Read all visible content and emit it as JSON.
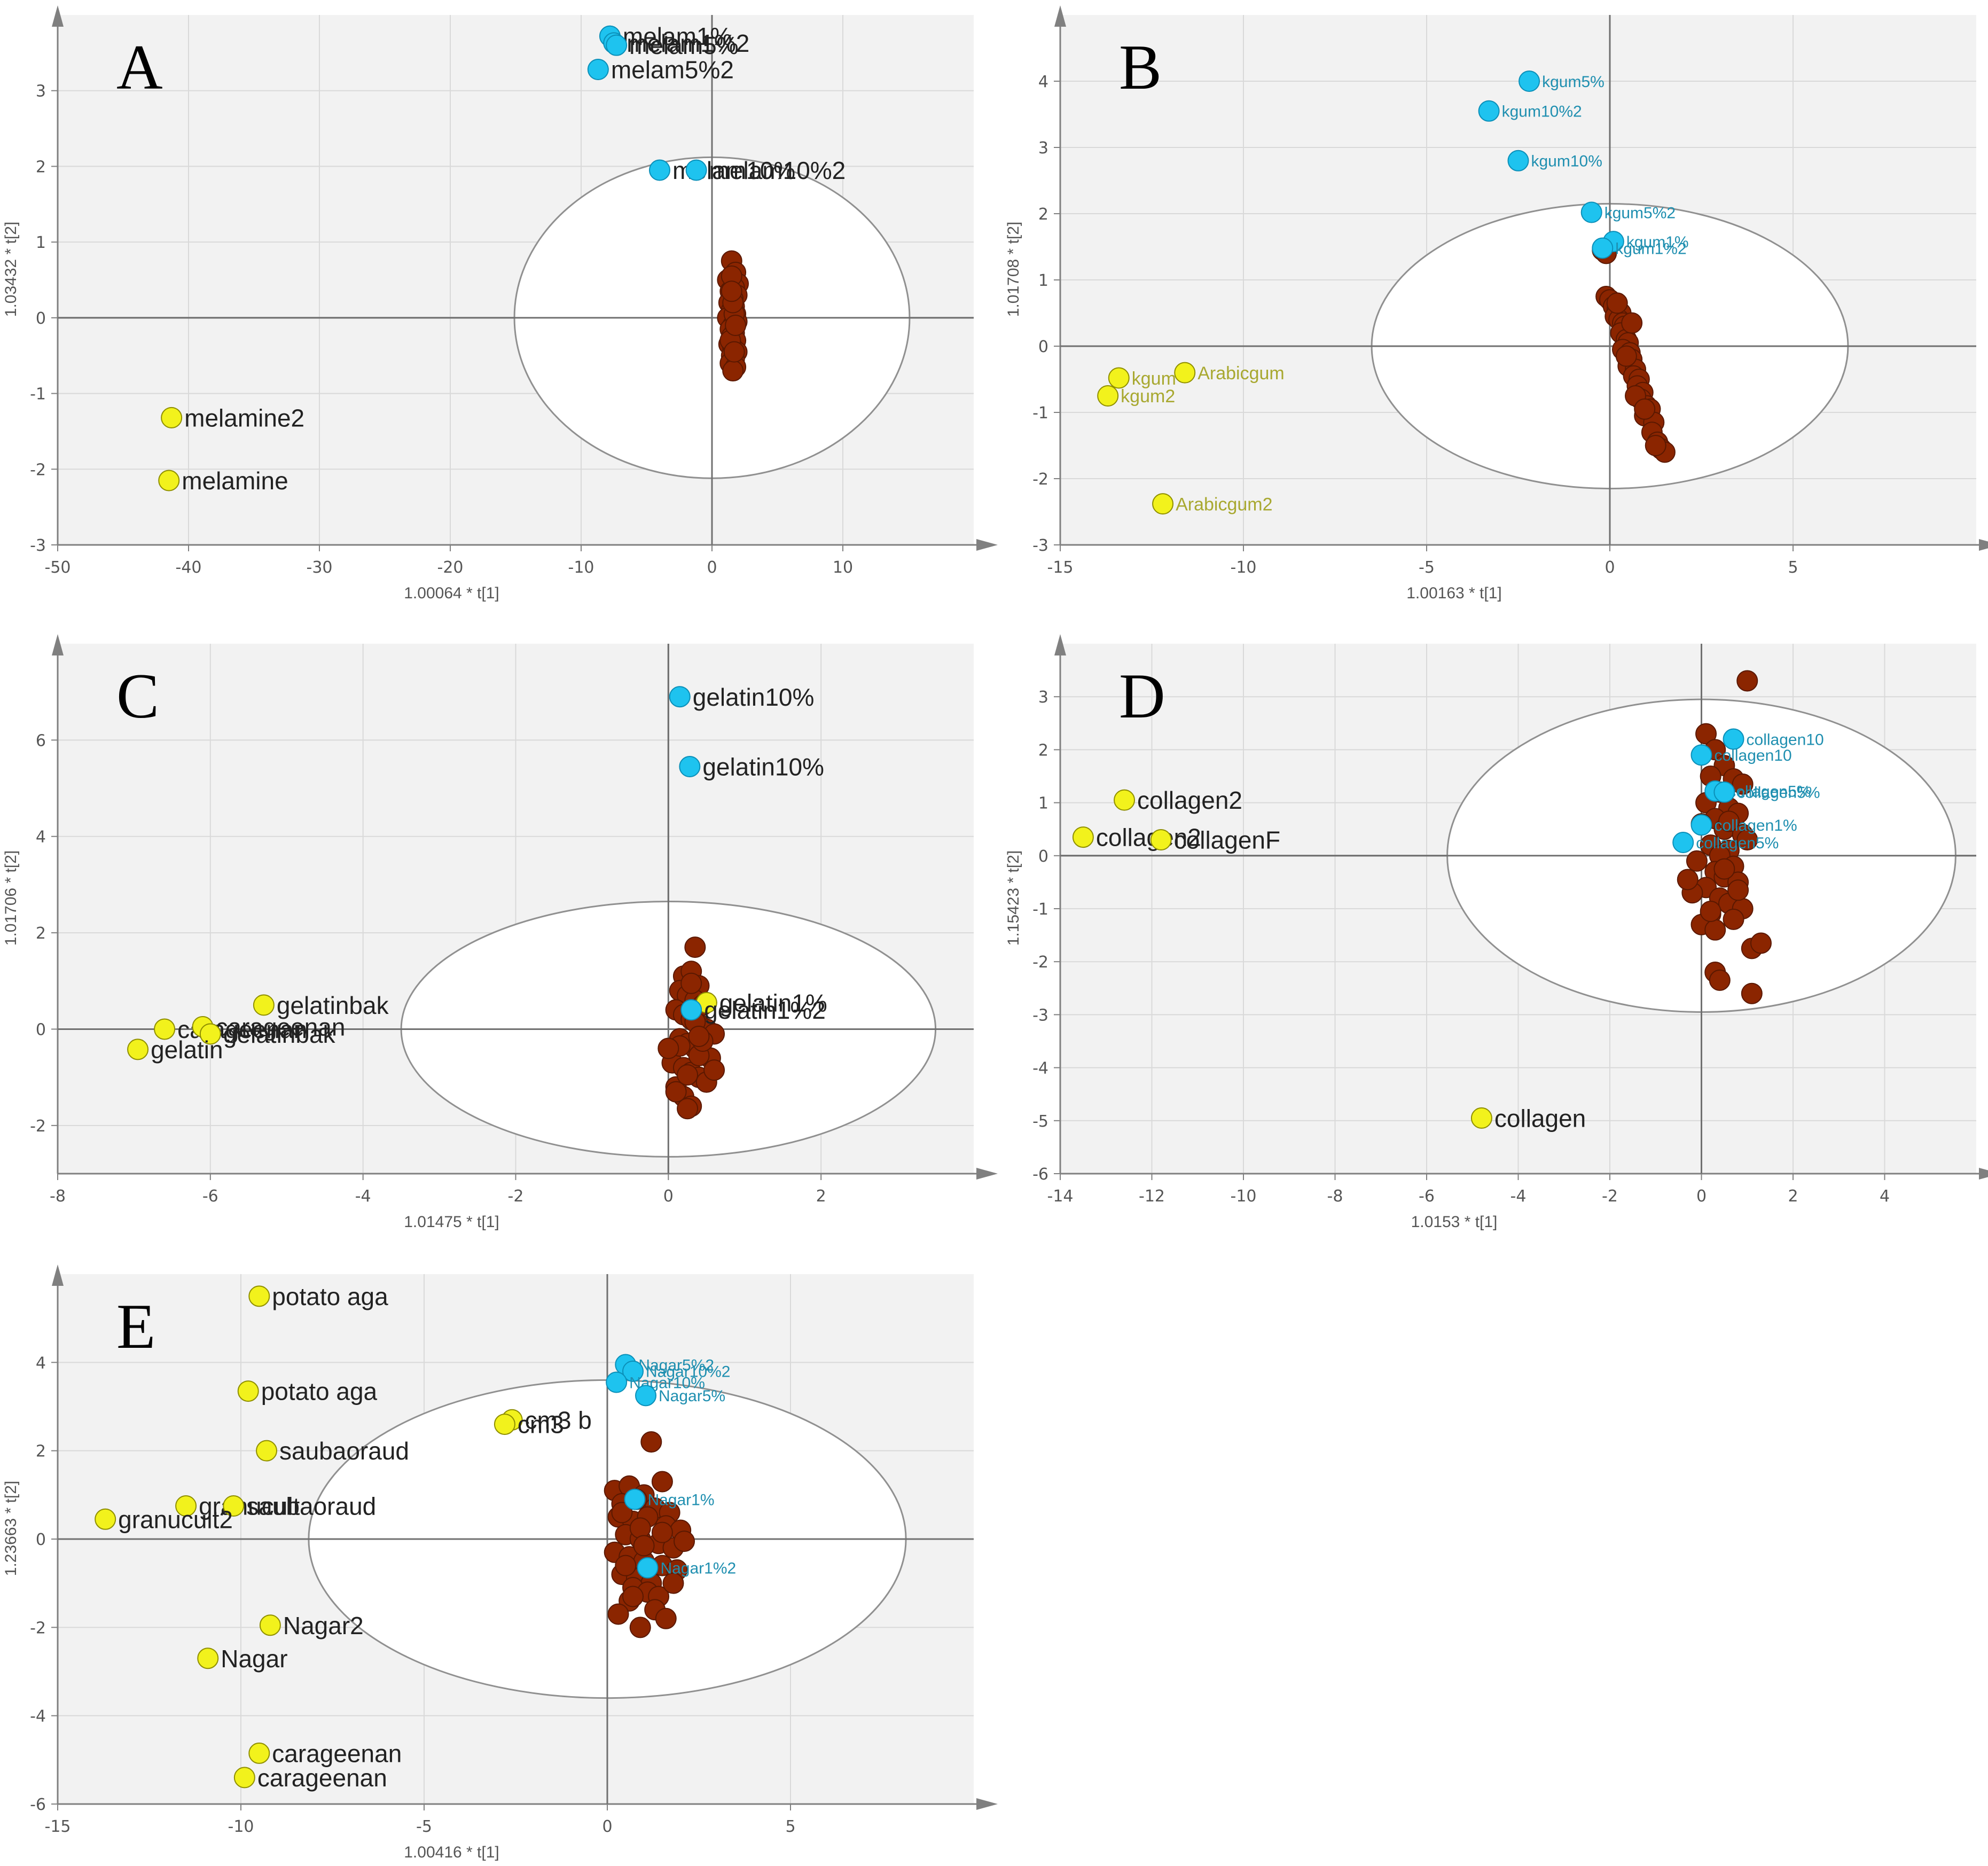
{
  "colors": {
    "plot_bg": "#f2f2f2",
    "grid": "#d9d9d9",
    "axis": "#808080",
    "ellipse": "#909090",
    "samples": "#8b2500",
    "samples_edge": "#5a1800",
    "blue": "#1ec3ef",
    "blue_edge": "#0b8fb8",
    "blue_label": "#1f8fb0",
    "yellow": "#f2f21c",
    "yellow_edge": "#8f8f00",
    "yellow_label_dim": "#a8a830",
    "tick_text": "#555555",
    "label_text": "#222222"
  },
  "chart_data": [
    {
      "panel": "A",
      "type": "scatter",
      "xlabel": "1.00064 * t[1]",
      "ylabel": "1.03432 * t[2]",
      "xlim": [
        -50,
        20
      ],
      "ylim": [
        -3,
        4
      ],
      "xticks": [
        -50,
        -40,
        -30,
        -20,
        -10,
        0,
        10
      ],
      "yticks": [
        -3,
        -2,
        -1,
        0,
        1,
        2,
        3
      ],
      "ellipse": {
        "cx": 0,
        "cy": 0,
        "rx": 15.1,
        "ry": 2.12
      },
      "cluster": {
        "x": [
          1.5,
          1.8,
          1.2,
          2.0,
          1.7,
          1.4,
          1.9,
          1.6,
          1.3,
          1.7,
          1.5,
          1.8,
          1.2,
          1.9,
          1.6,
          1.4,
          1.7,
          1.5,
          1.8,
          1.3,
          1.6,
          1.9,
          1.5,
          1.7,
          1.4,
          1.8,
          1.6,
          1.5,
          1.7,
          1.4,
          1.6,
          1.8,
          1.5,
          1.7
        ],
        "y": [
          0.75,
          0.6,
          0.5,
          0.45,
          0.4,
          0.35,
          0.3,
          0.25,
          0.2,
          0.15,
          0.1,
          0.05,
          0.0,
          -0.05,
          -0.1,
          -0.15,
          -0.2,
          -0.25,
          -0.3,
          -0.35,
          -0.4,
          -0.45,
          -0.5,
          -0.55,
          -0.6,
          -0.65,
          -0.7,
          0.55,
          0.05,
          -0.3,
          0.2,
          -0.1,
          0.35,
          -0.45
        ]
      },
      "labeled_points": [
        {
          "label": "melam1%",
          "x": -7.8,
          "y": 3.72,
          "group": "blue"
        },
        {
          "label": "melam1%2",
          "x": -7.5,
          "y": 3.63,
          "group": "blue"
        },
        {
          "label": "melam5%",
          "x": -7.3,
          "y": 3.6,
          "group": "blue"
        },
        {
          "label": "melam5%2",
          "x": -8.7,
          "y": 3.28,
          "group": "blue"
        },
        {
          "label": "melam10%",
          "x": -4.0,
          "y": 1.95,
          "group": "blue"
        },
        {
          "label": "melam10%2",
          "x": -1.2,
          "y": 1.95,
          "group": "blue"
        },
        {
          "label": "melamine2",
          "x": -41.3,
          "y": -1.32,
          "group": "yellow"
        },
        {
          "label": "melamine",
          "x": -41.5,
          "y": -2.15,
          "group": "yellow"
        }
      ]
    },
    {
      "panel": "B",
      "type": "scatter",
      "xlabel": "1.00163 * t[1]",
      "ylabel": "1.01708 * t[2]",
      "xlim": [
        -15,
        10
      ],
      "ylim": [
        -3,
        5
      ],
      "xticks": [
        -15,
        -10,
        -5,
        0,
        5
      ],
      "yticks": [
        -3,
        -2,
        -1,
        0,
        1,
        2,
        3,
        4
      ],
      "ellipse": {
        "cx": 0,
        "cy": 0,
        "rx": 6.5,
        "ry": 2.15
      },
      "cluster": {
        "x": [
          -0.1,
          0.0,
          0.1,
          0.2,
          0.3,
          0.15,
          0.25,
          0.35,
          0.4,
          0.3,
          0.45,
          0.5,
          0.35,
          0.55,
          0.6,
          0.5,
          0.7,
          0.65,
          0.8,
          0.75,
          0.9,
          0.85,
          1.0,
          1.1,
          0.95,
          1.2,
          1.15,
          1.3,
          1.4,
          1.5,
          1.25,
          0.6,
          0.45,
          0.2,
          0.7,
          0.95,
          -0.2,
          -0.1
        ],
        "y": [
          0.75,
          0.7,
          0.6,
          0.55,
          0.5,
          0.45,
          0.4,
          0.35,
          0.3,
          0.2,
          0.1,
          0.05,
          -0.05,
          -0.1,
          -0.2,
          -0.3,
          -0.35,
          -0.45,
          -0.5,
          -0.6,
          -0.7,
          -0.8,
          -0.9,
          -0.95,
          -1.05,
          -1.15,
          -1.3,
          -1.45,
          -1.55,
          -1.6,
          -1.5,
          0.35,
          -0.15,
          0.65,
          -0.75,
          -0.95,
          1.45,
          1.4
        ]
      },
      "labeled_points": [
        {
          "label": "kgum5%",
          "x": -2.2,
          "y": 4.0,
          "group": "blue"
        },
        {
          "label": "kgum10%2",
          "x": -3.3,
          "y": 3.55,
          "group": "blue"
        },
        {
          "label": "kgum10%",
          "x": -2.5,
          "y": 2.8,
          "group": "blue"
        },
        {
          "label": "kgum5%2",
          "x": -0.5,
          "y": 2.02,
          "group": "blue"
        },
        {
          "label": "kgum1%",
          "x": 0.1,
          "y": 1.58,
          "group": "blue"
        },
        {
          "label": "kgum1%2",
          "x": -0.2,
          "y": 1.48,
          "group": "blue"
        },
        {
          "label": "kgum",
          "x": -13.4,
          "y": -0.48,
          "group": "yellow"
        },
        {
          "label": "Arabicgum",
          "x": -11.6,
          "y": -0.4,
          "group": "yellow"
        },
        {
          "label": "kgum2",
          "x": -13.7,
          "y": -0.75,
          "group": "yellow"
        },
        {
          "label": "Arabicgum2",
          "x": -12.2,
          "y": -2.38,
          "group": "yellow"
        }
      ]
    },
    {
      "panel": "C",
      "type": "scatter",
      "xlabel": "1.01475 * t[1]",
      "ylabel": "1.01706 * t[2]",
      "xlim": [
        -8,
        4
      ],
      "ylim": [
        -3,
        8
      ],
      "xticks": [
        -8,
        -6,
        -4,
        -2,
        0,
        2
      ],
      "yticks": [
        -2,
        0,
        2,
        4,
        6
      ],
      "ellipse": {
        "cx": 0,
        "cy": 0,
        "rx": 3.5,
        "ry": 2.65
      },
      "cluster": {
        "x": [
          0.35,
          0.2,
          0.3,
          0.4,
          0.15,
          0.25,
          0.35,
          0.45,
          0.1,
          0.2,
          0.3,
          0.4,
          0.5,
          0.6,
          0.15,
          0.25,
          0.35,
          0.45,
          0.55,
          0.05,
          0.2,
          0.3,
          0.4,
          0.5,
          0.1,
          0.2,
          0.3,
          0.4,
          0.6,
          0.25,
          0.35,
          0.45,
          0.15,
          0.3,
          0.5,
          0.0,
          0.1,
          0.25,
          0.4
        ],
        "y": [
          1.7,
          1.1,
          1.2,
          0.9,
          0.8,
          0.7,
          0.6,
          0.5,
          0.4,
          0.3,
          0.2,
          0.1,
          0.0,
          -0.1,
          -0.2,
          -0.3,
          -0.4,
          -0.5,
          -0.6,
          -0.7,
          -0.8,
          -0.9,
          -1.0,
          -1.1,
          -1.2,
          -1.4,
          -1.6,
          -0.55,
          -0.85,
          -1.65,
          0.15,
          -0.25,
          -0.35,
          0.95,
          0.55,
          -0.4,
          -1.3,
          -0.95,
          -0.15
        ]
      },
      "labeled_points": [
        {
          "label": "gelatin10%",
          "x": 0.15,
          "y": 6.9,
          "group": "blue"
        },
        {
          "label": "gelatin10%",
          "x": 0.28,
          "y": 5.45,
          "group": "blue"
        },
        {
          "label": "gelatin1%",
          "x": 0.5,
          "y": 0.55,
          "group": "yellow"
        },
        {
          "label": "gelatin1%2",
          "x": 0.3,
          "y": 0.4,
          "group": "blue"
        },
        {
          "label": "gelatinbak",
          "x": -5.3,
          "y": 0.5,
          "group": "yellow"
        },
        {
          "label": "carageenan",
          "x": -6.6,
          "y": 0.0,
          "group": "yellow"
        },
        {
          "label": "carageenan",
          "x": -6.1,
          "y": 0.05,
          "group": "yellow"
        },
        {
          "label": "gelatinbak",
          "x": -6.0,
          "y": -0.1,
          "group": "yellow"
        },
        {
          "label": "gelatin",
          "x": -6.95,
          "y": -0.42,
          "group": "yellow"
        }
      ]
    },
    {
      "panel": "D",
      "type": "scatter",
      "xlabel": "1.0153 * t[1]",
      "ylabel": "1.15423 * t[2]",
      "xlim": [
        -14,
        6
      ],
      "ylim": [
        -6,
        4
      ],
      "xticks": [
        -14,
        -12,
        -10,
        -8,
        -6,
        -4,
        -2,
        0,
        2,
        4
      ],
      "yticks": [
        -6,
        -5,
        -4,
        -3,
        -2,
        -1,
        0,
        1,
        2,
        3
      ],
      "ellipse": {
        "cx": 0,
        "cy": 0,
        "rx": 5.55,
        "ry": 2.95
      },
      "cluster": {
        "x": [
          1.0,
          0.1,
          0.3,
          0.5,
          0.2,
          0.7,
          0.9,
          0.4,
          0.1,
          0.6,
          0.8,
          0.3,
          0.0,
          0.5,
          0.9,
          1.0,
          0.2,
          0.6,
          0.4,
          -0.1,
          0.7,
          0.3,
          0.5,
          0.8,
          0.1,
          -0.2,
          0.4,
          0.6,
          0.9,
          0.2,
          0.7,
          0.0,
          0.3,
          1.1,
          1.3,
          0.3,
          0.4,
          1.1,
          0.8,
          0.5,
          -0.3,
          0.6,
          0.2
        ],
        "y": [
          3.3,
          2.3,
          2.0,
          1.7,
          1.5,
          1.45,
          1.35,
          1.2,
          1.0,
          0.9,
          0.8,
          0.7,
          0.6,
          0.5,
          0.4,
          0.3,
          0.2,
          0.1,
          0.0,
          -0.1,
          -0.2,
          -0.3,
          -0.4,
          -0.5,
          -0.6,
          -0.7,
          -0.8,
          -0.9,
          -1.0,
          -1.1,
          -1.2,
          -1.3,
          -1.4,
          -1.75,
          -1.65,
          -2.2,
          -2.35,
          -2.6,
          -0.65,
          -0.25,
          -0.45,
          0.65,
          -1.05
        ]
      },
      "labeled_points": [
        {
          "label": "collagen10",
          "x": 0.7,
          "y": 2.2,
          "group": "blue"
        },
        {
          "label": "collagen10",
          "x": 0.0,
          "y": 1.9,
          "group": "blue"
        },
        {
          "label": "collagen5%",
          "x": 0.3,
          "y": 1.22,
          "group": "blue"
        },
        {
          "label": "collagen5%",
          "x": 0.5,
          "y": 1.2,
          "group": "blue"
        },
        {
          "label": "collagen1%",
          "x": 0.0,
          "y": 0.58,
          "group": "blue"
        },
        {
          "label": "collagen5%",
          "x": -0.4,
          "y": 0.25,
          "group": "blue"
        },
        {
          "label": "collagen2",
          "x": -12.6,
          "y": 1.05,
          "group": "yellow"
        },
        {
          "label": "collagen2",
          "x": -13.5,
          "y": 0.35,
          "group": "yellow"
        },
        {
          "label": "collagenF",
          "x": -11.8,
          "y": 0.3,
          "group": "yellow"
        },
        {
          "label": "collagen",
          "x": -4.8,
          "y": -4.95,
          "group": "yellow"
        }
      ]
    },
    {
      "panel": "E",
      "type": "scatter",
      "xlabel": "1.00416 * t[1]",
      "ylabel": "1.23663 * t[2]",
      "xlim": [
        -15,
        10
      ],
      "ylim": [
        -6,
        6
      ],
      "xticks": [
        -15,
        -10,
        -5,
        0,
        5
      ],
      "yticks": [
        -6,
        -4,
        -2,
        0,
        2,
        4
      ],
      "ellipse": {
        "cx": 0,
        "cy": 0,
        "rx": 8.15,
        "ry": 3.6
      },
      "cluster": {
        "x": [
          1.2,
          0.2,
          0.6,
          1.0,
          1.5,
          0.4,
          0.8,
          1.3,
          1.7,
          0.3,
          0.7,
          1.1,
          1.6,
          2.0,
          0.5,
          0.9,
          1.4,
          1.8,
          0.2,
          0.6,
          1.0,
          1.5,
          1.9,
          0.4,
          0.8,
          1.2,
          0.7,
          1.1,
          1.4,
          0.6,
          1.3,
          0.3,
          0.9,
          2.1,
          1.5,
          0.5,
          0.9,
          1.8,
          0.4,
          1.6,
          1.0,
          0.7
        ],
        "y": [
          2.2,
          1.1,
          1.2,
          1.0,
          1.3,
          0.8,
          0.9,
          0.7,
          0.6,
          0.5,
          0.4,
          0.5,
          0.3,
          0.2,
          0.1,
          0.0,
          -0.1,
          -0.2,
          -0.3,
          -0.4,
          -0.5,
          -0.6,
          -0.7,
          -0.8,
          -0.9,
          -1.0,
          -1.1,
          -1.2,
          -1.3,
          -1.4,
          -1.6,
          -1.7,
          -2.0,
          -0.05,
          0.15,
          -0.6,
          0.25,
          -1.0,
          0.6,
          -1.8,
          -0.15,
          -1.3
        ]
      },
      "labeled_points": [
        {
          "label": "Nagar5%2",
          "x": 0.5,
          "y": 3.95,
          "group": "blue"
        },
        {
          "label": "Nagar10%2",
          "x": 0.7,
          "y": 3.8,
          "group": "blue"
        },
        {
          "label": "Nagar10%",
          "x": 0.25,
          "y": 3.55,
          "group": "blue"
        },
        {
          "label": "Nagar5%",
          "x": 1.05,
          "y": 3.25,
          "group": "blue"
        },
        {
          "label": "Nagar1%",
          "x": 0.75,
          "y": 0.9,
          "group": "blue"
        },
        {
          "label": "Nagar1%2",
          "x": 1.1,
          "y": -0.65,
          "group": "blue"
        },
        {
          "label": "potato aga",
          "x": -9.5,
          "y": 5.5,
          "group": "yellow"
        },
        {
          "label": "potato aga",
          "x": -9.8,
          "y": 3.35,
          "group": "yellow"
        },
        {
          "label": "cm3 b",
          "x": -2.6,
          "y": 2.7,
          "group": "yellow"
        },
        {
          "label": "cm3",
          "x": -2.8,
          "y": 2.6,
          "group": "yellow"
        },
        {
          "label": "saubaoraud",
          "x": -9.3,
          "y": 2.0,
          "group": "yellow"
        },
        {
          "label": "granucult",
          "x": -11.5,
          "y": 0.75,
          "group": "yellow"
        },
        {
          "label": "saubaoraud",
          "x": -10.2,
          "y": 0.75,
          "group": "yellow"
        },
        {
          "label": "granucult2",
          "x": -13.7,
          "y": 0.45,
          "group": "yellow"
        },
        {
          "label": "Nagar2",
          "x": -9.2,
          "y": -1.95,
          "group": "yellow"
        },
        {
          "label": "Nagar",
          "x": -10.9,
          "y": -2.7,
          "group": "yellow"
        },
        {
          "label": "carageenan",
          "x": -9.5,
          "y": -4.85,
          "group": "yellow"
        },
        {
          "label": "carageenan",
          "x": -9.9,
          "y": -5.4,
          "group": "yellow"
        }
      ]
    }
  ]
}
